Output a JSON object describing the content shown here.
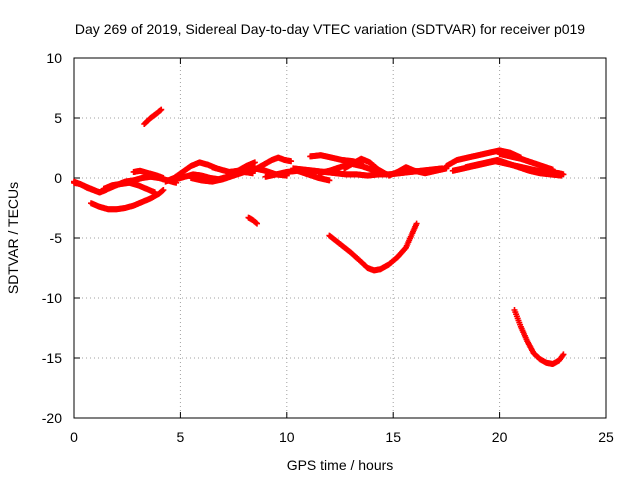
{
  "chart_data": {
    "type": "scatter",
    "title": "Day 269 of 2019, Sidereal Day-to-day VTEC variation (SDTVAR) for receiver p019",
    "xlabel": "GPS time / hours",
    "ylabel": "SDTVAR / TECUs",
    "xlim": [
      0,
      25
    ],
    "ylim": [
      -20,
      10
    ],
    "xticks": [
      0,
      5,
      10,
      15,
      20,
      25
    ],
    "yticks": [
      -20,
      -15,
      -10,
      -5,
      0,
      5,
      10
    ],
    "grid": true,
    "color": "#ff0000",
    "series": [
      {
        "name": "sdtvar",
        "tracks": [
          {
            "x": [
              0.0,
              0.3,
              0.6,
              0.9,
              1.2,
              1.5
            ],
            "y": [
              -0.4,
              -0.5,
              -0.8,
              -1.0,
              -1.2,
              -1.0
            ]
          },
          {
            "x": [
              0.0,
              0.4,
              0.8,
              1.2,
              1.6,
              2.0,
              2.4,
              2.8,
              3.2,
              3.6,
              4.0,
              4.4,
              4.8
            ],
            "y": [
              -0.3,
              -0.6,
              -0.9,
              -1.2,
              -0.9,
              -0.6,
              -0.3,
              -0.2,
              0.0,
              0.1,
              0.0,
              -0.2,
              -0.4
            ]
          },
          {
            "x": [
              0.8,
              1.2,
              1.6,
              2.0,
              2.4,
              2.8,
              3.2,
              3.6,
              4.0,
              4.2
            ],
            "y": [
              -2.1,
              -2.4,
              -2.6,
              -2.6,
              -2.5,
              -2.3,
              -2.0,
              -1.7,
              -1.3,
              -1.0
            ]
          },
          {
            "x": [
              1.4,
              1.8,
              2.2,
              2.6,
              3.0,
              3.4,
              3.8
            ],
            "y": [
              -0.9,
              -0.6,
              -0.5,
              -0.4,
              -0.6,
              -0.9,
              -1.2
            ]
          },
          {
            "x": [
              2.8,
              3.1,
              3.5,
              3.9,
              4.2
            ],
            "y": [
              0.5,
              0.6,
              0.4,
              0.2,
              0.0
            ]
          },
          {
            "x": [
              3.3,
              3.6,
              3.9,
              4.1
            ],
            "y": [
              4.5,
              5.0,
              5.4,
              5.7
            ]
          },
          {
            "x": [
              4.3,
              4.7,
              5.1,
              5.5,
              5.9,
              6.3,
              6.7
            ],
            "y": [
              -0.3,
              0.0,
              0.5,
              1.0,
              1.3,
              1.1,
              0.8
            ]
          },
          {
            "x": [
              4.8,
              5.2,
              5.6,
              6.0,
              6.4,
              6.8,
              7.2,
              7.6,
              8.0,
              8.4
            ],
            "y": [
              -0.1,
              0.1,
              0.3,
              0.2,
              0.0,
              -0.1,
              0.1,
              0.3,
              0.5,
              0.4
            ]
          },
          {
            "x": [
              5.5,
              6.0,
              6.5,
              7.0,
              7.5,
              8.0,
              8.5,
              9.0,
              9.5,
              10.0
            ],
            "y": [
              0.0,
              -0.2,
              -0.3,
              -0.1,
              0.2,
              0.5,
              0.8,
              0.6,
              0.3,
              0.2
            ]
          },
          {
            "x": [
              6.5,
              6.9,
              7.3,
              7.7,
              8.1,
              8.5
            ],
            "y": [
              0.9,
              0.7,
              0.5,
              0.6,
              1.0,
              1.3
            ]
          },
          {
            "x": [
              8.2,
              8.4,
              8.6
            ],
            "y": [
              -3.3,
              -3.5,
              -3.8
            ]
          },
          {
            "x": [
              8.4,
              8.7,
              9.0,
              9.3,
              9.6,
              9.9,
              10.2
            ],
            "y": [
              0.6,
              0.9,
              1.2,
              1.5,
              1.7,
              1.5,
              1.4
            ]
          },
          {
            "x": [
              9.0,
              9.5,
              10.0,
              10.5,
              11.0,
              11.5,
              12.0
            ],
            "y": [
              0.1,
              0.3,
              0.5,
              0.6,
              0.3,
              0.0,
              -0.2
            ]
          },
          {
            "x": [
              10.3,
              10.8,
              11.3,
              11.8,
              12.3,
              12.8,
              13.3,
              13.8,
              14.3,
              14.8,
              15.3,
              15.8,
              16.3,
              16.8,
              17.3
            ],
            "y": [
              0.8,
              0.7,
              0.6,
              0.5,
              0.4,
              0.3,
              0.3,
              0.2,
              0.3,
              0.3,
              0.4,
              0.5,
              0.6,
              0.7,
              0.8
            ]
          },
          {
            "x": [
              11.1,
              11.6,
              12.1,
              12.6,
              13.1,
              13.5
            ],
            "y": [
              1.8,
              1.9,
              1.7,
              1.5,
              1.4,
              1.2
            ]
          },
          {
            "x": [
              11.5,
              12.0,
              12.5,
              13.0,
              13.5,
              14.0,
              14.5
            ],
            "y": [
              0.4,
              0.6,
              0.9,
              1.2,
              1.0,
              0.7,
              0.4
            ]
          },
          {
            "x": [
              12.7,
              13.1,
              13.5,
              13.9,
              14.3,
              14.7
            ],
            "y": [
              0.8,
              1.2,
              1.6,
              1.3,
              0.7,
              0.3
            ]
          },
          {
            "x": [
              12.0,
              12.5,
              13.0,
              13.5,
              13.8,
              14.1,
              14.4,
              14.8,
              15.2,
              15.6,
              15.9,
              16.1
            ],
            "y": [
              -4.8,
              -5.5,
              -6.2,
              -7.0,
              -7.5,
              -7.7,
              -7.6,
              -7.2,
              -6.6,
              -5.8,
              -4.6,
              -3.8
            ]
          },
          {
            "x": [
              14.8,
              15.2,
              15.6,
              16.0,
              16.5,
              17.0,
              17.5
            ],
            "y": [
              0.2,
              0.5,
              0.9,
              0.6,
              0.4,
              0.6,
              0.8
            ]
          },
          {
            "x": [
              17.5,
              18.0,
              18.5,
              19.0,
              19.5,
              20.0,
              20.5,
              21.0
            ],
            "y": [
              1.0,
              1.5,
              1.7,
              1.9,
              2.1,
              2.3,
              2.1,
              1.7
            ]
          },
          {
            "x": [
              17.8,
              18.3,
              18.8,
              19.3,
              19.8,
              20.3,
              20.8,
              21.3,
              21.8,
              22.3,
              22.8,
              23.0
            ],
            "y": [
              0.6,
              0.8,
              1.0,
              1.2,
              1.4,
              1.2,
              1.0,
              0.8,
              0.6,
              0.5,
              0.4,
              0.3
            ]
          },
          {
            "x": [
              18.4,
              18.9,
              19.4,
              19.9,
              20.4,
              20.9,
              21.4,
              21.9,
              22.4,
              22.9
            ],
            "y": [
              0.9,
              1.1,
              1.3,
              1.5,
              1.2,
              0.9,
              0.6,
              0.4,
              0.3,
              0.2
            ]
          },
          {
            "x": [
              20.0,
              20.5,
              21.0,
              21.5,
              22.0,
              22.5
            ],
            "y": [
              2.0,
              1.8,
              1.6,
              1.3,
              1.0,
              0.7
            ]
          },
          {
            "x": [
              20.7,
              21.0,
              21.3,
              21.6,
              21.9,
              22.2,
              22.5,
              22.8,
              23.0
            ],
            "y": [
              -11.0,
              -12.4,
              -13.6,
              -14.6,
              -15.1,
              -15.4,
              -15.5,
              -15.2,
              -14.7
            ]
          }
        ]
      }
    ]
  }
}
